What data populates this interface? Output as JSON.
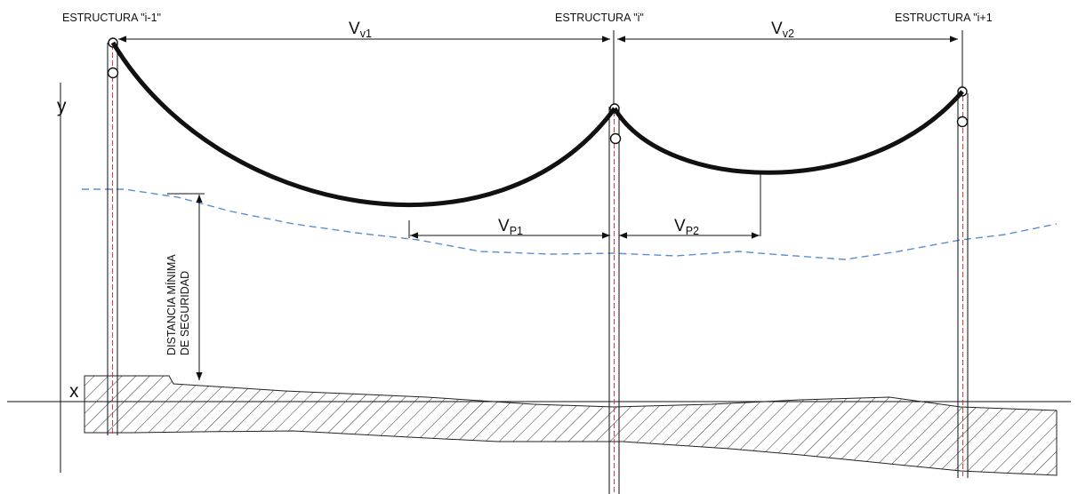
{
  "structures": {
    "left": "ESTRUCTURA \"i-1\"",
    "middle": "ESTRUCTURA \"i\"",
    "right": "ESTRUCTURA \"i+1"
  },
  "axes": {
    "y": "y",
    "x": "x"
  },
  "spans": {
    "vv1": {
      "main": "V",
      "sub": "v1"
    },
    "vv2": {
      "main": "V",
      "sub": "v2"
    },
    "vp1": {
      "main": "V",
      "sub": "P1"
    },
    "vp2": {
      "main": "V",
      "sub": "P2"
    }
  },
  "clearance": {
    "line1": "DISTANCIA MÍNIMA",
    "line2": "DE SEGURIDAD"
  },
  "colors": {
    "conductor": "#111111",
    "clearance_line": "#5b8fd0",
    "pole_axis": "#d04040",
    "ground_hatch": "#333333"
  }
}
